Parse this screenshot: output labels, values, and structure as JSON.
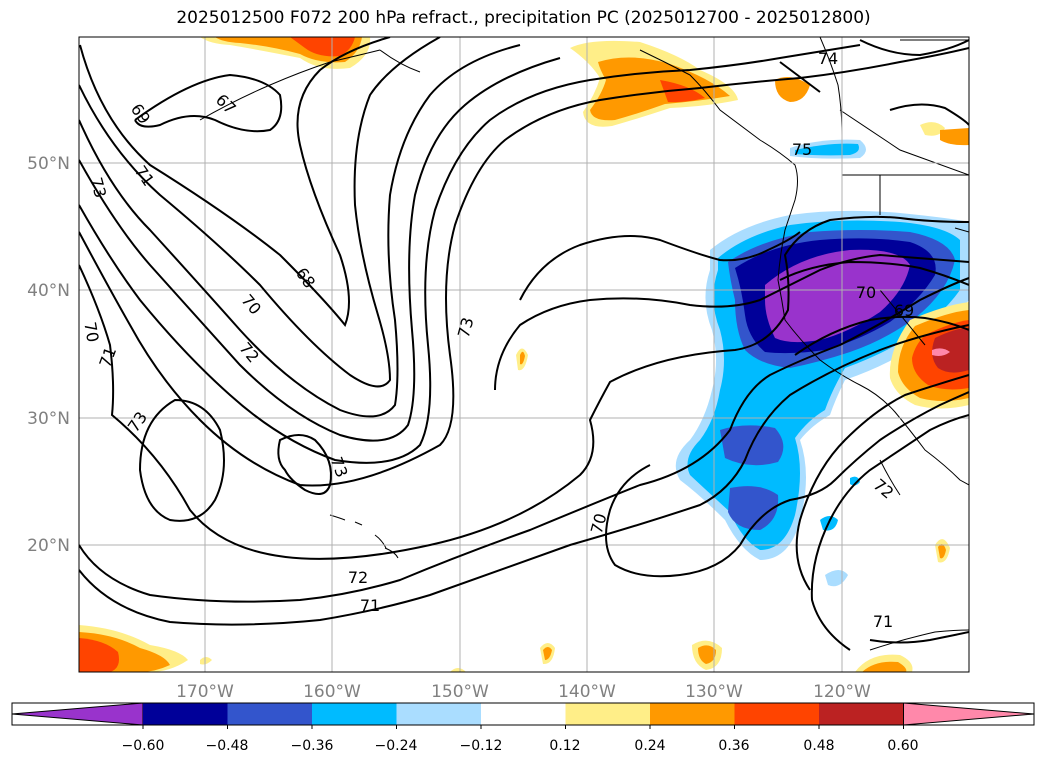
{
  "title": "2025012500 F072 200 hPa refract., precipitation PC (2025012700 - 2025012800)",
  "lat_labels": [
    "50°N",
    "40°N",
    "30°N",
    "20°N"
  ],
  "lon_labels": [
    "170°W",
    "160°W",
    "150°W",
    "140°W",
    "130°W",
    "120°W"
  ],
  "contour_labels": [
    "69",
    "67",
    "73",
    "71",
    "68",
    "70",
    "72",
    "73",
    "73",
    "70",
    "71",
    "73",
    "72",
    "71",
    "70",
    "74",
    "75",
    "70",
    "69",
    "72",
    "71"
  ],
  "colorbar": {
    "tick_labels": [
      "−0.60",
      "−0.48",
      "−0.36",
      "−0.24",
      "−0.12",
      "0.12",
      "0.24",
      "0.36",
      "0.48",
      "0.60"
    ],
    "colors": [
      "#9933cc",
      "#000099",
      "#3355cc",
      "#00bbff",
      "#aaddff",
      "#ffffff",
      "#ffee88",
      "#ff9900",
      "#ff4400",
      "#bb2222",
      "#ff88aa"
    ]
  },
  "chart_data": {
    "type": "heatmap",
    "title": "2025012500 F072 200 hPa refract., precipitation PC (2025012700 - 2025012800)",
    "x_ticks": [
      "170°W",
      "160°W",
      "150°W",
      "140°W",
      "130°W",
      "120°W"
    ],
    "y_ticks": [
      "20°N",
      "30°N",
      "40°N",
      "50°N"
    ],
    "xlim": [
      -180,
      -110
    ],
    "ylim": [
      10,
      60
    ],
    "grid": true,
    "shading_levels": [
      -0.6,
      -0.48,
      -0.36,
      -0.24,
      -0.12,
      0.12,
      0.24,
      0.36,
      0.48,
      0.6
    ],
    "contour_levels": [
      67,
      68,
      69,
      70,
      71,
      72,
      73,
      74,
      75
    ]
  }
}
